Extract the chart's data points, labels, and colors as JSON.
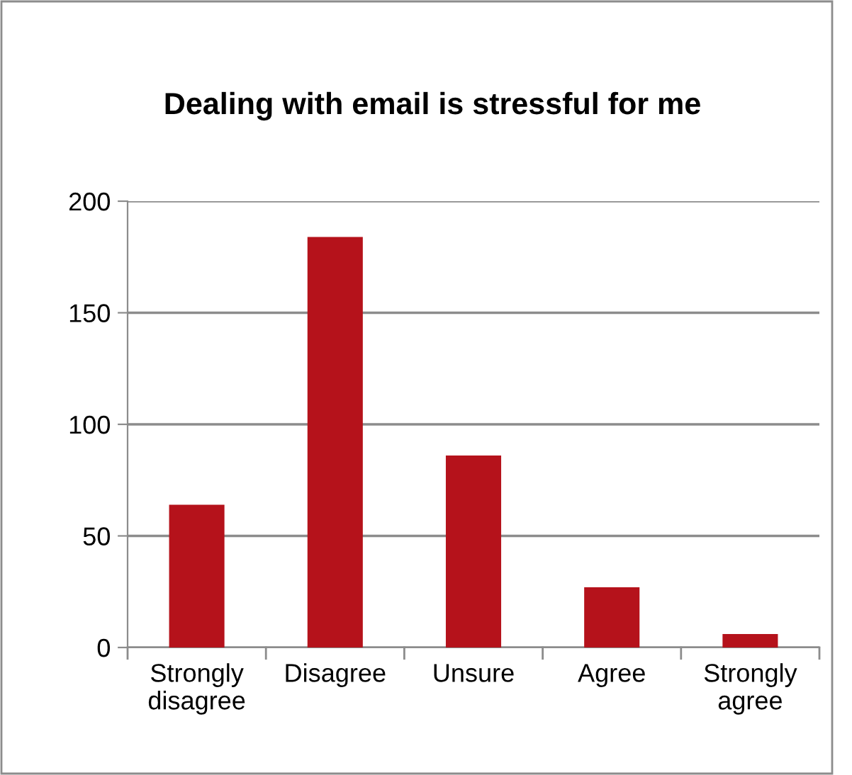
{
  "chart_data": {
    "type": "bar",
    "title": "Dealing with email is stressful for me",
    "categories": [
      "Strongly disagree",
      "Disagree",
      "Unsure",
      "Agree",
      "Strongly agree"
    ],
    "values": [
      64,
      184,
      86,
      27,
      6
    ],
    "color": "#b5121b",
    "ylim": [
      0,
      200
    ],
    "yticks": [
      0,
      50,
      100,
      150,
      200
    ],
    "grid": "y",
    "legend": false
  }
}
